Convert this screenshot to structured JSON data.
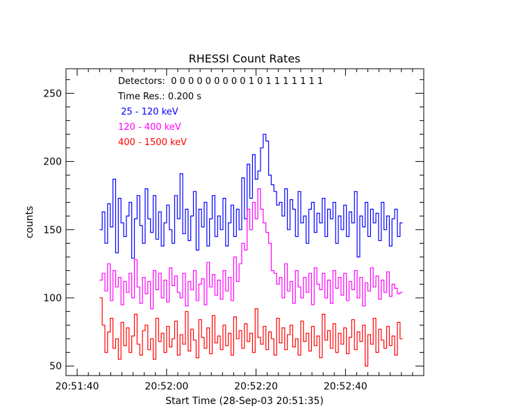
{
  "chart_data": {
    "type": "line",
    "title": "RHESSI Count Rates",
    "xlabel": "Start Time (28-Sep-03 20:51:35)",
    "ylabel": "counts",
    "x_unit": "seconds after 20:51:35",
    "xlim": [
      2.5,
      82.5
    ],
    "ylim": [
      43,
      268
    ],
    "x_ticks": [
      {
        "value": 5,
        "label": "20:51:40"
      },
      {
        "value": 25,
        "label": "20:52:00"
      },
      {
        "value": 45,
        "label": "20:52:20"
      },
      {
        "value": 65,
        "label": "20:52:40"
      }
    ],
    "y_ticks": [
      {
        "value": 50,
        "label": "50"
      },
      {
        "value": 100,
        "label": "100"
      },
      {
        "value": 150,
        "label": "150"
      },
      {
        "value": 200,
        "label": "200"
      },
      {
        "value": 250,
        "label": "250"
      }
    ],
    "annotations": {
      "detectors": "Detectors:  0 0 0 0 0 0 0 0 0 1 0 1 1 1 1 1 1 1",
      "time_res": "Time Res.: 0.200 s"
    },
    "series": [
      {
        "name": " 25 - 120 keV",
        "color": "#0000ff",
        "x_start": 10.0,
        "dt": 0.6,
        "values": [
          150,
          163,
          140,
          169,
          152,
          187,
          133,
          173,
          155,
          145,
          160,
          170,
          129,
          158,
          175,
          153,
          140,
          180,
          158,
          148,
          175,
          143,
          163,
          138,
          155,
          168,
          150,
          140,
          175,
          158,
          191,
          147,
          165,
          142,
          160,
          178,
          135,
          165,
          152,
          170,
          138,
          158,
          175,
          145,
          160,
          150,
          173,
          138,
          155,
          168,
          145,
          165,
          150,
          188,
          158,
          198,
          173,
          205,
          187,
          193,
          210,
          220,
          215,
          190,
          183,
          178,
          168,
          170,
          160,
          180,
          150,
          172,
          165,
          145,
          178,
          155,
          160,
          140,
          165,
          170,
          148,
          162,
          155,
          173,
          145,
          165,
          158,
          170,
          140,
          160,
          150,
          168,
          145,
          163,
          155,
          178,
          130,
          160,
          152,
          170,
          145,
          165,
          155,
          162,
          142,
          170,
          150,
          160,
          138,
          158,
          165,
          145,
          155
        ]
      },
      {
        "name": "120 - 400 keV",
        "color": "#ff00ff",
        "x_start": 10.0,
        "dt": 0.6,
        "values": [
          113,
          118,
          105,
          125,
          98,
          120,
          108,
          115,
          95,
          112,
          104,
          118,
          100,
          128,
          108,
          96,
          115,
          103,
          112,
          92,
          120,
          106,
          118,
          100,
          113,
          97,
          122,
          109,
          116,
          104,
          100,
          118,
          94,
          112,
          106,
          120,
          98,
          110,
          114,
          95,
          126,
          108,
          117,
          102,
          113,
          99,
          120,
          105,
          115,
          98,
          130,
          112,
          125,
          140,
          135,
          165,
          150,
          170,
          158,
          180,
          165,
          155,
          148,
          140,
          120,
          118,
          110,
          115,
          100,
          125,
          105,
          112,
          96,
          120,
          108,
          100,
          115,
          104,
          118,
          95,
          122,
          110,
          106,
          118,
          100,
          113,
          96,
          120,
          107,
          115,
          102,
          118,
          98,
          112,
          106,
          120,
          100,
          115,
          94,
          111,
          105,
          122,
          108,
          116,
          99,
          113,
          104,
          119,
          101,
          110,
          107,
          103,
          104
        ]
      },
      {
        "name": "400 - 1500 keV",
        "color": "#ff0000",
        "x_start": 10.0,
        "dt": 0.6,
        "values": [
          100,
          80,
          60,
          75,
          85,
          63,
          70,
          55,
          82,
          65,
          78,
          60,
          72,
          88,
          66,
          58,
          76,
          80,
          62,
          70,
          55,
          85,
          68,
          74,
          60,
          79,
          64,
          70,
          83,
          58,
          73,
          66,
          90,
          61,
          77,
          69,
          56,
          84,
          71,
          63,
          78,
          59,
          87,
          67,
          72,
          62,
          80,
          65,
          74,
          58,
          86,
          70,
          76,
          63,
          81,
          68,
          74,
          60,
          92,
          71,
          66,
          79,
          62,
          75,
          70,
          58,
          85,
          67,
          78,
          62,
          73,
          80,
          64,
          70,
          58,
          83,
          68,
          74,
          61,
          79,
          65,
          72,
          56,
          88,
          69,
          76,
          63,
          81,
          60,
          74,
          66,
          78,
          59,
          71,
          84,
          62,
          75,
          68,
          80,
          50,
          73,
          66,
          85,
          60,
          77,
          69,
          63,
          79,
          65,
          72,
          58,
          82,
          70
        ]
      }
    ]
  }
}
